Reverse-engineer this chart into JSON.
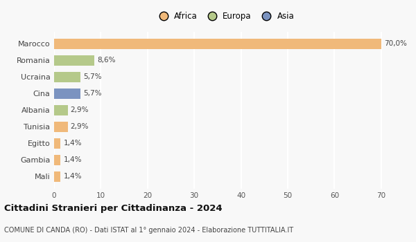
{
  "categories": [
    "Marocco",
    "Romania",
    "Ucraina",
    "Cina",
    "Albania",
    "Tunisia",
    "Egitto",
    "Gambia",
    "Mali"
  ],
  "values": [
    70.0,
    8.6,
    5.7,
    5.7,
    2.9,
    2.9,
    1.4,
    1.4,
    1.4
  ],
  "labels": [
    "70,0%",
    "8,6%",
    "5,7%",
    "5,7%",
    "2,9%",
    "2,9%",
    "1,4%",
    "1,4%",
    "1,4%"
  ],
  "colors": [
    "#f0b97a",
    "#b5c98a",
    "#b5c98a",
    "#7b93c0",
    "#b5c98a",
    "#f0b97a",
    "#f0b97a",
    "#f0b97a",
    "#f0b97a"
  ],
  "legend_labels": [
    "Africa",
    "Europa",
    "Asia"
  ],
  "legend_colors": [
    "#f0b97a",
    "#b5c98a",
    "#7b93c0"
  ],
  "title": "Cittadini Stranieri per Cittadinanza - 2024",
  "subtitle": "COMUNE DI CANDA (RO) - Dati ISTAT al 1° gennaio 2024 - Elaborazione TUTTITALIA.IT",
  "xlim": [
    0,
    73
  ],
  "xticks": [
    0,
    10,
    20,
    30,
    40,
    50,
    60,
    70
  ],
  "background_color": "#f8f8f8",
  "grid_color": "#ffffff",
  "bar_height": 0.62
}
